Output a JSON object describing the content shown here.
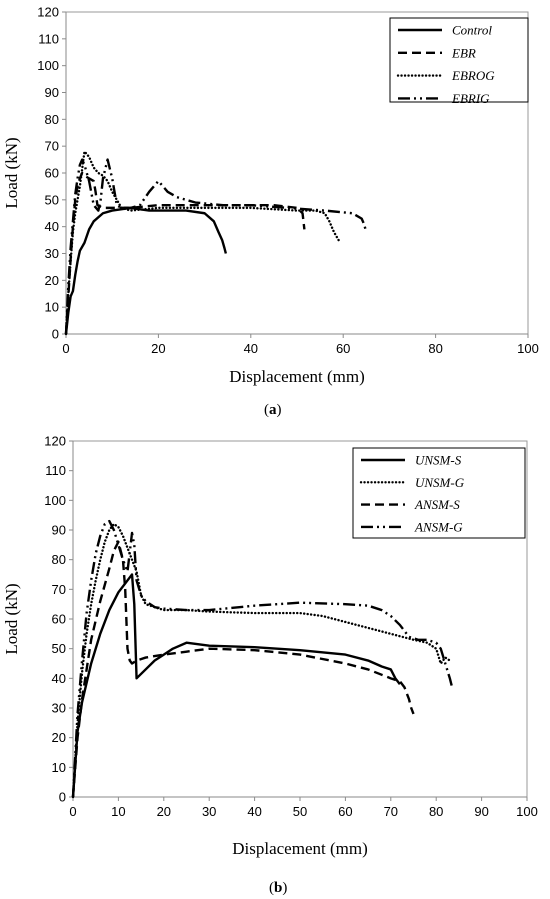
{
  "chart_data": [
    {
      "type": "line",
      "caption_open": "(",
      "caption_letter": "a",
      "caption_close": ")",
      "xlabel": "Displacement (mm)",
      "ylabel": "Load (kN)",
      "xlim": [
        0,
        100
      ],
      "ylim": [
        0,
        120
      ],
      "x_ticks": [
        0,
        20,
        40,
        60,
        80,
        100
      ],
      "y_ticks": [
        0,
        10,
        20,
        30,
        40,
        50,
        60,
        70,
        80,
        90,
        100,
        110,
        120
      ],
      "grid": false,
      "legend_position": "top-right",
      "series": [
        {
          "name": "Control",
          "style": "solid",
          "x": [
            0,
            0.5,
            1,
            1.5,
            2,
            2.5,
            3,
            4,
            5,
            6,
            8,
            10,
            14,
            18,
            22,
            26,
            30,
            32,
            33,
            33.8,
            34.3,
            34.6
          ],
          "y": [
            0,
            8,
            14,
            16,
            22,
            27,
            31,
            34,
            39,
            42,
            45,
            46,
            47,
            46,
            46,
            46,
            45,
            42,
            38,
            35,
            32,
            30
          ]
        },
        {
          "name": "EBR",
          "style": "dashed",
          "x": [
            0,
            0.5,
            1,
            1.5,
            2,
            2.5,
            3,
            3.5,
            4,
            5,
            6,
            6.4,
            6.8,
            8,
            10,
            14,
            20,
            30,
            40,
            45,
            50,
            51.2,
            51.4,
            51.6
          ],
          "y": [
            0,
            14,
            28,
            40,
            50,
            55,
            58,
            60,
            59,
            58,
            57,
            53,
            48,
            47,
            47,
            47,
            48,
            48,
            48,
            48,
            47,
            45,
            42,
            39
          ]
        },
        {
          "name": "EBROG",
          "style": "dotted",
          "x": [
            0,
            0.5,
            1,
            1.5,
            2,
            3,
            4,
            5,
            6,
            7,
            8,
            9,
            10,
            11,
            12,
            14,
            20,
            30,
            40,
            50,
            54,
            56,
            57,
            58,
            59
          ],
          "y": [
            0,
            15,
            27,
            38,
            45,
            55,
            68,
            66,
            62,
            60,
            59,
            57,
            53,
            50,
            47,
            46,
            47,
            47,
            47,
            46,
            46,
            45,
            42,
            38,
            35
          ]
        },
        {
          "name": "EBRIG",
          "style": "dashdotdot",
          "x": [
            0,
            0.5,
            1,
            1.5,
            2,
            2.5,
            3,
            3.5,
            4,
            5,
            6,
            7,
            7.5,
            8,
            9,
            10,
            11,
            12,
            14,
            16,
            18,
            19,
            20,
            21,
            22,
            24,
            28,
            34,
            40,
            48,
            56,
            62,
            64,
            64.5,
            65
          ],
          "y": [
            0,
            18,
            32,
            42,
            52,
            58,
            63,
            65,
            63,
            57,
            48,
            46,
            50,
            58,
            65,
            58,
            48,
            47,
            47,
            48,
            53,
            55,
            57,
            55,
            53,
            51,
            49,
            48,
            48,
            47,
            46,
            45,
            43,
            41,
            38
          ]
        }
      ]
    },
    {
      "type": "line",
      "caption_open": "(",
      "caption_letter": "b",
      "caption_close": ")",
      "xlabel": "Displacement (mm)",
      "ylabel": "Load (kN)",
      "xlim": [
        0,
        100
      ],
      "ylim": [
        0,
        120
      ],
      "x_ticks": [
        0,
        10,
        20,
        30,
        40,
        50,
        60,
        70,
        80,
        90,
        100
      ],
      "y_ticks": [
        0,
        10,
        20,
        30,
        40,
        50,
        60,
        70,
        80,
        90,
        100,
        110,
        120
      ],
      "grid": false,
      "legend_position": "top-right",
      "series": [
        {
          "name": "UNSM-S",
          "style": "solid",
          "x": [
            0,
            1,
            2,
            4,
            6,
            8,
            10,
            12,
            13,
            13.5,
            14,
            16,
            18,
            20,
            22,
            25,
            30,
            40,
            50,
            60,
            65,
            68,
            70,
            71,
            72
          ],
          "y": [
            0,
            22,
            32,
            45,
            55,
            63,
            69,
            73,
            75,
            65,
            40,
            43,
            46,
            48,
            50,
            52,
            51,
            50.5,
            49.5,
            48,
            46,
            44,
            43,
            40,
            38
          ]
        },
        {
          "name": "UNSM-G",
          "style": "dotted",
          "x": [
            0,
            1,
            2,
            3,
            4,
            5,
            6,
            7,
            8,
            9,
            10,
            11,
            12,
            13,
            14,
            15,
            16,
            18,
            20,
            25,
            30,
            40,
            50,
            55,
            60,
            65,
            70,
            75,
            78,
            80,
            81,
            82,
            83
          ],
          "y": [
            0,
            25,
            42,
            55,
            65,
            73,
            80,
            86,
            90,
            92,
            91,
            88,
            84,
            80,
            76,
            68,
            65,
            64,
            63,
            63,
            62.5,
            62,
            62,
            61,
            59,
            57,
            55,
            53,
            52,
            50,
            45,
            47,
            46
          ]
        },
        {
          "name": "ANSM-S",
          "style": "dashed",
          "x": [
            0,
            1,
            2,
            4,
            6,
            8,
            9,
            10,
            11,
            11.5,
            12,
            12.5,
            13,
            14,
            16,
            20,
            25,
            30,
            40,
            50,
            60,
            65,
            70,
            72,
            73,
            74,
            74.5,
            75
          ],
          "y": [
            0,
            20,
            33,
            53,
            66,
            77,
            83,
            86,
            80,
            70,
            50,
            46,
            45,
            46,
            47,
            48,
            49,
            50,
            49.5,
            48,
            45,
            43,
            40,
            39,
            37,
            33,
            30,
            28
          ]
        },
        {
          "name": "ANSM-G",
          "style": "dashdotdot",
          "x": [
            0,
            1,
            2,
            3,
            4,
            5,
            6,
            7,
            8,
            9,
            10,
            11,
            12,
            13,
            13.5,
            14,
            15,
            16,
            18,
            20,
            25,
            30,
            40,
            50,
            60,
            65,
            68,
            70,
            72,
            74,
            76,
            78,
            80,
            81,
            82,
            83,
            83.5
          ],
          "y": [
            0,
            28,
            46,
            62,
            73,
            82,
            88,
            92,
            93,
            90,
            85,
            80,
            76,
            89,
            85,
            73,
            68,
            66,
            64,
            63.5,
            63,
            63,
            64.5,
            65.5,
            65,
            64.5,
            63,
            61,
            58,
            54,
            53,
            53,
            52,
            50,
            45,
            40,
            37
          ]
        }
      ]
    }
  ]
}
